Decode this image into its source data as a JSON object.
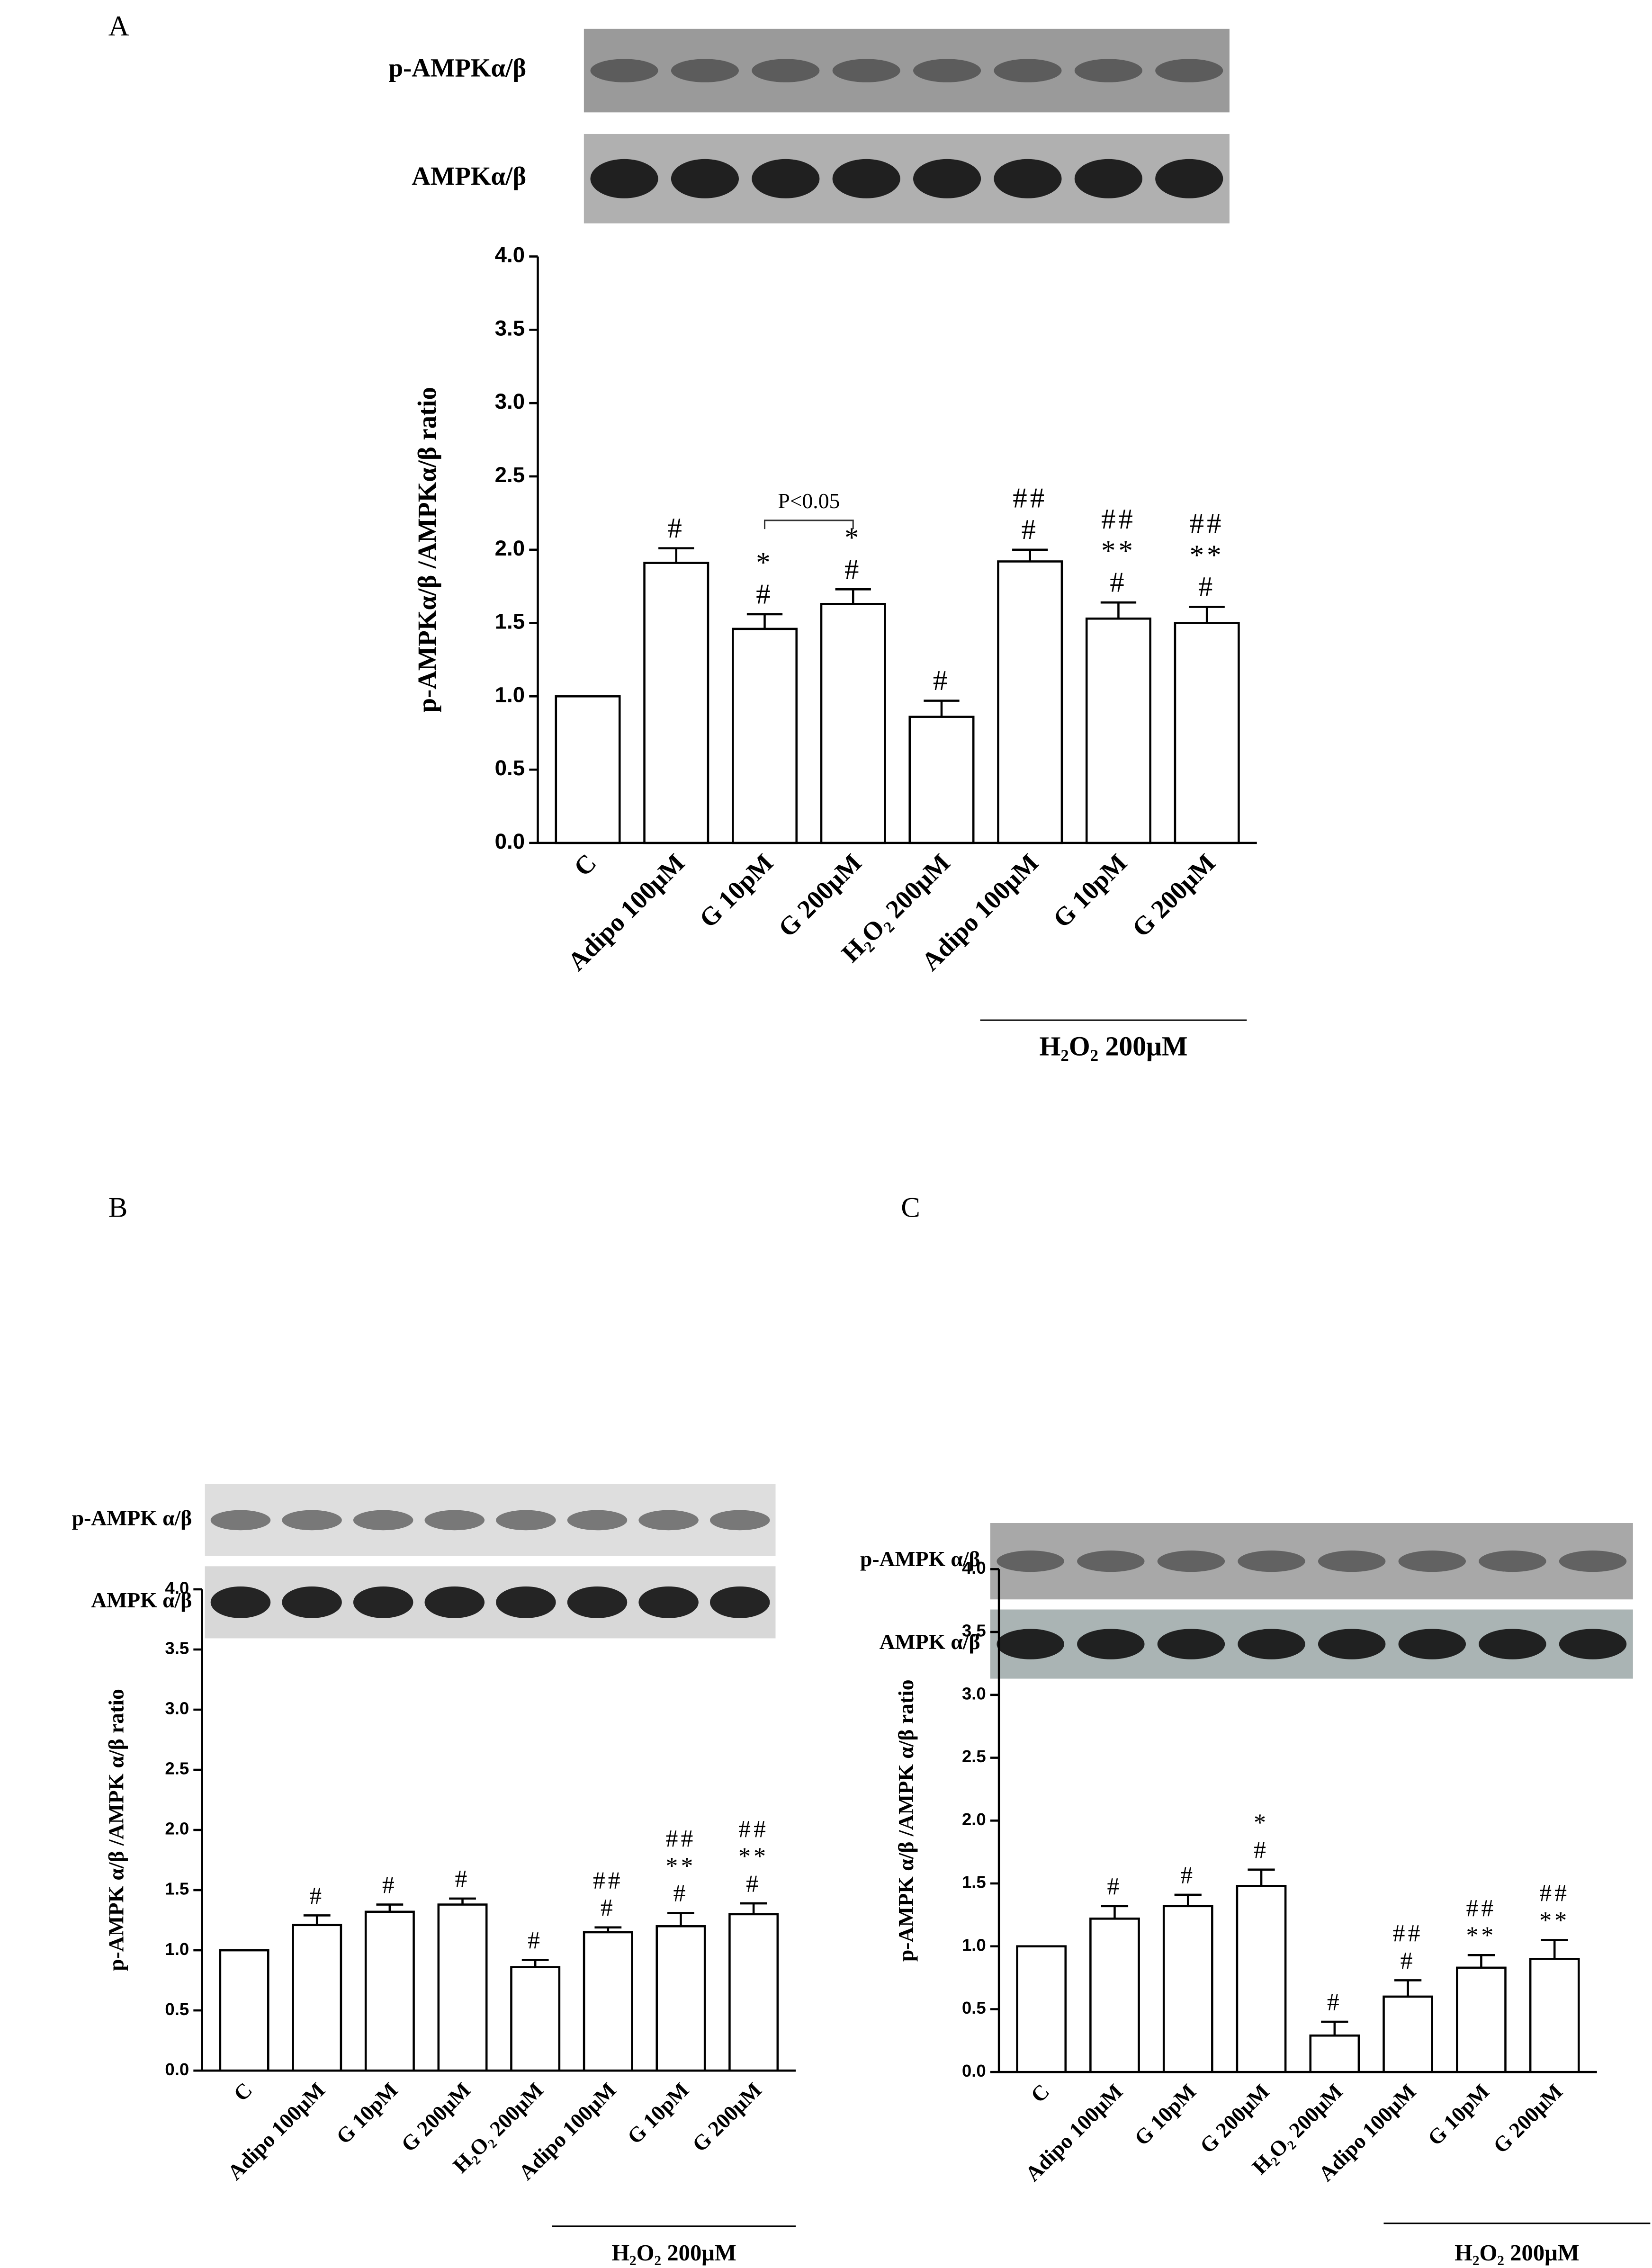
{
  "chart_data": [
    {
      "type": "bar",
      "panel": "A",
      "blots": [
        "p-AMPKα/β",
        "AMPKα/β"
      ],
      "y_label": "p-AMPKα/β /AMPKα/β ratio",
      "categories": [
        "C",
        "Adipo 100μM",
        "G 10pM",
        "G 200μM",
        "H₂O₂ 200μM",
        "Adipo 100μM",
        "G 10pM",
        "G 200μM"
      ],
      "values": [
        1.0,
        1.91,
        1.46,
        1.63,
        0.86,
        1.92,
        1.53,
        1.5
      ],
      "errors": [
        0,
        0.1,
        0.1,
        0.1,
        0.11,
        0.08,
        0.11,
        0.11
      ],
      "annotations": [
        [],
        [
          "#"
        ],
        [
          "*",
          "#"
        ],
        [
          "*",
          "#"
        ],
        [
          "#"
        ],
        [
          "##",
          "#"
        ],
        [
          "##",
          "**",
          "#"
        ],
        [
          "##",
          "**",
          "#"
        ]
      ],
      "bracket": "P<0.05",
      "group_label": "H₂O₂ 200μM",
      "color": "#ffffff",
      "ylim": [
        0,
        4
      ],
      "yticks": [
        {
          "value": 0,
          "label": "0.0"
        },
        {
          "value": 0.5,
          "label": "0.5"
        },
        {
          "value": 1,
          "label": "1.0"
        },
        {
          "value": 1.5,
          "label": "1.5"
        },
        {
          "value": 2,
          "label": "2.0"
        },
        {
          "value": 2.5,
          "label": "2.5"
        },
        {
          "value": 3,
          "label": "3.0"
        },
        {
          "value": 3.5,
          "label": "3.5"
        },
        {
          "value": 4,
          "label": "4.0"
        }
      ],
      "grid": false
    },
    {
      "type": "bar",
      "panel": "B",
      "blots": [
        "p-AMPK α/β",
        "AMPK α/β"
      ],
      "y_label": "p-AMPK α/β /AMPK α/β ratio",
      "categories": [
        "C",
        "Adipo 100μM",
        "G 10pM",
        "G 200μM",
        "H₂O₂ 200μM",
        "Adipo 100μM",
        "G 10pM",
        "G 200μM"
      ],
      "values": [
        1.0,
        1.21,
        1.32,
        1.38,
        0.86,
        1.15,
        1.2,
        1.3
      ],
      "errors": [
        0,
        0.08,
        0.06,
        0.05,
        0.06,
        0.04,
        0.11,
        0.09
      ],
      "annotations": [
        [],
        [
          "#"
        ],
        [
          "#"
        ],
        [
          "#"
        ],
        [
          "#"
        ],
        [
          "##",
          "#"
        ],
        [
          "##",
          "**",
          "#"
        ],
        [
          "##",
          "**",
          "#"
        ]
      ],
      "group_label": "H₂O₂ 200μM",
      "color": "#ffffff",
      "ylim": [
        0,
        4
      ],
      "yticks": [
        {
          "value": 0,
          "label": "0.0"
        },
        {
          "value": 0.5,
          "label": "0.5"
        },
        {
          "value": 1,
          "label": "1.0"
        },
        {
          "value": 1.5,
          "label": "1.5"
        },
        {
          "value": 2,
          "label": "2.0"
        },
        {
          "value": 2.5,
          "label": "2.5"
        },
        {
          "value": 3,
          "label": "3.0"
        },
        {
          "value": 3.5,
          "label": "3.5"
        },
        {
          "value": 4,
          "label": "4.0"
        }
      ],
      "grid": false
    },
    {
      "type": "bar",
      "panel": "C",
      "blots": [
        "p-AMPK α/β",
        "AMPK α/β"
      ],
      "y_label": "p-AMPK α/β /AMPK α/β ratio",
      "categories": [
        "C",
        "Adipo 100μM",
        "G 10pM",
        "G 200μM",
        "H₂O₂ 200μM",
        "Adipo 100μM",
        "G 10pM",
        "G 200μM"
      ],
      "values": [
        1.0,
        1.22,
        1.32,
        1.48,
        0.29,
        0.6,
        0.83,
        0.9
      ],
      "errors": [
        0,
        0.1,
        0.09,
        0.13,
        0.11,
        0.13,
        0.1,
        0.15
      ],
      "annotations": [
        [],
        [
          "#"
        ],
        [
          "#"
        ],
        [
          "*",
          "#"
        ],
        [
          "#"
        ],
        [
          "##",
          "#"
        ],
        [
          "##",
          "**"
        ],
        [
          "##",
          "**"
        ]
      ],
      "group_label": "H₂O₂ 200μM",
      "color": "#ffffff",
      "ylim": [
        0,
        4
      ],
      "yticks": [
        {
          "value": 0,
          "label": "0.0"
        },
        {
          "value": 0.5,
          "label": "0.5"
        },
        {
          "value": 1,
          "label": "1.0"
        },
        {
          "value": 1.5,
          "label": "1.5"
        },
        {
          "value": 2,
          "label": "2.0"
        },
        {
          "value": 2.5,
          "label": "2.5"
        },
        {
          "value": 3,
          "label": "3.0"
        },
        {
          "value": 3.5,
          "label": "3.5"
        },
        {
          "value": 4,
          "label": "4.0"
        }
      ],
      "grid": false
    }
  ]
}
